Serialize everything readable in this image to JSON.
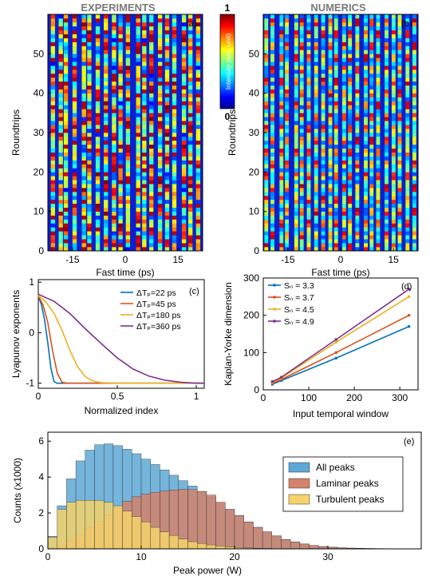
{
  "colors": {
    "axis": "#000000",
    "header": "#7a7a7a"
  },
  "chart_data": [
    {
      "id": "a",
      "type": "heatmap",
      "header": "EXPERIMENTS",
      "panel_label": "(a)",
      "xlabel": "Fast time (ps)",
      "ylabel": "Roundtrips",
      "xlim": [
        -22,
        22
      ],
      "ylim": [
        0,
        60
      ],
      "xticks": [
        -15,
        0,
        15
      ],
      "yticks": [
        0,
        10,
        20,
        30,
        40,
        50
      ],
      "colorbar": {
        "label": "Intensity (arb. unit)",
        "min_label": "0",
        "max_label": "1",
        "colormap": "jet"
      },
      "description_values": {
        "num_columns": 20,
        "roundtrips": 60
      }
    },
    {
      "id": "b",
      "type": "heatmap",
      "header": "NUMERICS",
      "panel_label": "(b)",
      "xlabel": "Fast time (ps)",
      "ylabel": "Roundtrips",
      "xlim": [
        -22,
        22
      ],
      "ylim": [
        0,
        60
      ],
      "xticks": [
        -15,
        0,
        15
      ],
      "yticks": [
        0,
        10,
        20,
        30,
        40,
        50
      ],
      "description_values": {
        "num_columns": 22,
        "roundtrips": 60
      }
    },
    {
      "id": "c",
      "type": "line",
      "panel_label": "(c)",
      "xlabel": "Normalized index",
      "ylabel": "Lyapunov exponents",
      "xlim": [
        0,
        1.05
      ],
      "ylim": [
        -1.1,
        1.05
      ],
      "xticks": [
        0,
        0.5,
        1
      ],
      "xtick_labels": [
        "0",
        "0.5",
        "1"
      ],
      "yticks": [
        -1,
        0,
        1
      ],
      "ytick_labels": [
        "-1",
        "0",
        "1"
      ],
      "legend": "top-right",
      "series": [
        {
          "name": "ΔTₚ=22 ps",
          "color": "#0072BD",
          "x": [
            0,
            0.02,
            0.04,
            0.06,
            0.08,
            0.1,
            0.12,
            0.2,
            1.05
          ],
          "y": [
            0.72,
            0.55,
            0.25,
            -0.2,
            -0.7,
            -0.97,
            -1.0,
            -1.0,
            -1.0
          ]
        },
        {
          "name": "ΔTₚ=45 ps",
          "color": "#D95319",
          "x": [
            0,
            0.03,
            0.06,
            0.09,
            0.12,
            0.15,
            0.18,
            0.3,
            1.05
          ],
          "y": [
            0.73,
            0.55,
            0.2,
            -0.35,
            -0.8,
            -0.98,
            -1.0,
            -1.0,
            -1.0
          ]
        },
        {
          "name": "ΔTₚ=180 ps",
          "color": "#EDB120",
          "x": [
            0,
            0.05,
            0.1,
            0.15,
            0.2,
            0.25,
            0.3,
            0.35,
            0.4,
            0.5,
            1.05
          ],
          "y": [
            0.74,
            0.6,
            0.38,
            0.05,
            -0.35,
            -0.68,
            -0.88,
            -0.96,
            -0.99,
            -1.0,
            -1.0
          ]
        },
        {
          "name": "ΔTₚ=360 ps",
          "color": "#7E2F8E",
          "x": [
            0,
            0.1,
            0.2,
            0.3,
            0.4,
            0.5,
            0.6,
            0.7,
            0.8,
            0.9,
            1.0,
            1.05
          ],
          "y": [
            0.76,
            0.62,
            0.38,
            0.07,
            -0.22,
            -0.5,
            -0.72,
            -0.86,
            -0.94,
            -0.98,
            -1.0,
            -1.0
          ]
        }
      ]
    },
    {
      "id": "d",
      "type": "line",
      "panel_label": "(d)",
      "xlabel": "Input temporal window",
      "ylabel": "Kaplan-Yorke dimension",
      "xlim": [
        0,
        340
      ],
      "ylim": [
        0,
        300
      ],
      "xticks": [
        0,
        100,
        200,
        300
      ],
      "yticks": [
        0,
        100,
        200,
        300
      ],
      "legend": "top-left",
      "series": [
        {
          "name": "Sₙ = 3.3",
          "color": "#0072BD",
          "x": [
            20,
            40,
            160,
            320
          ],
          "y": [
            15,
            25,
            85,
            170
          ]
        },
        {
          "name": "Sₙ = 3.7",
          "color": "#D95319",
          "x": [
            20,
            40,
            160,
            320
          ],
          "y": [
            18,
            28,
            100,
            200
          ]
        },
        {
          "name": "Sₙ = 4.5",
          "color": "#EDB120",
          "x": [
            20,
            40,
            160,
            320
          ],
          "y": [
            20,
            32,
            128,
            250
          ]
        },
        {
          "name": "Sₙ = 4.9",
          "color": "#7E2F8E",
          "x": [
            20,
            40,
            160,
            320
          ],
          "y": [
            22,
            34,
            135,
            270
          ]
        }
      ]
    },
    {
      "id": "e",
      "type": "bar",
      "panel_label": "(e)",
      "xlabel": "Peak power (W)",
      "ylabel": "Counts (x1000)",
      "xlim": [
        0,
        40
      ],
      "ylim": [
        0,
        6.5
      ],
      "xticks": [
        0,
        10,
        20,
        30
      ],
      "yticks": [
        0,
        2,
        4,
        6
      ],
      "legend": "top-right",
      "series": [
        {
          "name": "All peaks",
          "color": "#5DA8D6",
          "x": [
            0.5,
            1.5,
            2.5,
            3.5,
            4.5,
            5.5,
            6.5,
            7.5,
            8.5,
            9.5,
            10.5,
            11.5,
            12.5,
            13.5,
            14.5,
            15.5,
            16.5,
            17.5,
            18.5,
            19.5,
            20.5,
            21.5,
            22.5,
            23.5,
            24.5,
            25.5,
            26.5,
            27.5,
            28.5,
            29.5,
            30.5,
            31.5,
            32.5,
            33.5,
            34.5,
            35.5,
            36.5,
            37.5,
            38.5
          ],
          "y": [
            0.7,
            2.4,
            3.9,
            4.9,
            5.5,
            5.8,
            5.85,
            5.75,
            5.55,
            5.3,
            5.0,
            4.7,
            4.4,
            4.1,
            3.8,
            3.5,
            3.2,
            2.9,
            2.55,
            2.2,
            1.85,
            1.5,
            1.2,
            0.95,
            0.72,
            0.52,
            0.38,
            0.27,
            0.19,
            0.13,
            0.09,
            0.06,
            0.04,
            0.03,
            0.02,
            0.015,
            0.01,
            0.005,
            0.003
          ]
        },
        {
          "name": "Laminar peaks",
          "color": "#D4826B",
          "x": [
            0.5,
            1.5,
            2.5,
            3.5,
            4.5,
            5.5,
            6.5,
            7.5,
            8.5,
            9.5,
            10.5,
            11.5,
            12.5,
            13.5,
            14.5,
            15.5,
            16.5,
            17.5,
            18.5,
            19.5,
            20.5,
            21.5,
            22.5,
            23.5,
            24.5,
            25.5,
            26.5,
            27.5,
            28.5,
            29.5,
            30.5,
            31.5,
            32.5,
            33.5,
            34.5,
            35.5,
            36.5,
            37.5,
            38.5
          ],
          "y": [
            0.05,
            0.2,
            0.45,
            0.8,
            1.2,
            1.55,
            1.9,
            2.3,
            2.65,
            2.9,
            3.05,
            3.15,
            3.22,
            3.28,
            3.32,
            3.3,
            3.2,
            3.0,
            2.6,
            2.2,
            1.85,
            1.5,
            1.2,
            0.95,
            0.72,
            0.52,
            0.38,
            0.27,
            0.19,
            0.13,
            0.09,
            0.06,
            0.04,
            0.03,
            0.02,
            0.015,
            0.01,
            0.005,
            0.003
          ]
        },
        {
          "name": "Turbulent peaks",
          "color": "#F5D26A",
          "x": [
            0.5,
            1.5,
            2.5,
            3.5,
            4.5,
            5.5,
            6.5,
            7.5,
            8.5,
            9.5,
            10.5,
            11.5,
            12.5,
            13.5,
            14.5,
            15.5,
            16.5,
            17.5,
            18.5,
            19.5,
            20.5,
            21.5,
            22.5,
            23.5,
            24.5,
            25.5
          ],
          "y": [
            0.65,
            2.2,
            2.6,
            2.7,
            2.7,
            2.7,
            2.6,
            2.4,
            2.1,
            1.8,
            1.5,
            1.2,
            0.95,
            0.75,
            0.55,
            0.4,
            0.3,
            0.22,
            0.16,
            0.11,
            0.08,
            0.05,
            0.03,
            0.02,
            0.01,
            0.005
          ]
        }
      ]
    }
  ]
}
